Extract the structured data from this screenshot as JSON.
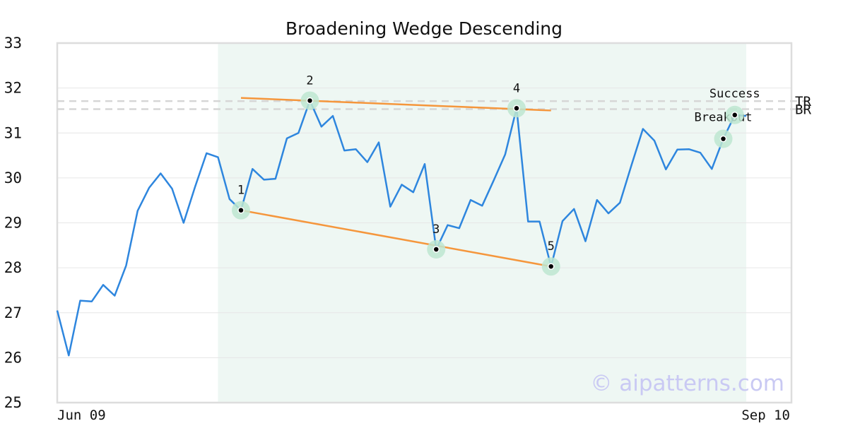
{
  "chart_data": {
    "type": "line",
    "title": "Broadening Wedge Descending",
    "xlabel": "",
    "ylabel": "",
    "ylim": [
      25,
      33
    ],
    "yticks": [
      25,
      26,
      27,
      28,
      29,
      30,
      31,
      32,
      33
    ],
    "x_tick_labels": [
      "Jun 09",
      "Sep 10"
    ],
    "grid": true,
    "colors": {
      "price": "#2e86de",
      "trendline": "#f5963c",
      "pattern_region": "#eef7f3",
      "marker_halo": "#bde6d0",
      "guide_line": "#d6d6d6",
      "watermark": "#c9c9f3"
    },
    "series": [
      {
        "values": [
          27.05,
          26.05,
          27.27,
          27.25,
          27.62,
          27.38,
          28.05,
          29.27,
          29.78,
          30.1,
          29.76,
          29.0,
          29.8,
          30.55,
          30.46,
          29.53,
          29.28,
          30.2,
          29.96,
          29.98,
          30.88,
          31.0,
          31.72,
          31.14,
          31.38,
          30.61,
          30.64,
          30.35,
          30.79,
          29.36,
          29.85,
          29.68,
          30.31,
          28.41,
          28.95,
          28.88,
          29.51,
          29.38,
          29.94,
          30.52,
          31.55,
          29.03,
          29.03,
          28.03,
          29.04,
          29.31,
          28.59,
          29.51,
          29.21,
          29.45,
          30.28,
          31.09,
          30.83,
          30.19,
          30.63,
          30.64,
          30.56,
          30.2,
          30.87,
          31.4,
          31.38
        ]
      }
    ],
    "pattern_region": {
      "start_index": 14,
      "end_index": 60
    },
    "pattern_points": [
      {
        "label": "1",
        "index": 16,
        "value": 29.28
      },
      {
        "label": "2",
        "index": 22,
        "value": 31.72
      },
      {
        "label": "3",
        "index": 33,
        "value": 28.41
      },
      {
        "label": "4",
        "index": 40,
        "value": 31.55
      },
      {
        "label": "5",
        "index": 43,
        "value": 28.03
      }
    ],
    "trendlines": [
      {
        "name": "upper",
        "from": {
          "index": 16,
          "value": 31.78
        },
        "to": {
          "index": 43,
          "value": 31.5
        }
      },
      {
        "name": "lower",
        "from": {
          "index": 16,
          "value": 29.28
        },
        "to": {
          "index": 43,
          "value": 28.03
        }
      }
    ],
    "annotations": [
      {
        "label": "Breakout",
        "index": 58,
        "value": 30.87
      },
      {
        "label": "Success",
        "index": 59,
        "value": 31.4
      }
    ],
    "horizontal_lines": [
      {
        "label": "TR",
        "value": 31.71
      },
      {
        "label": "BR",
        "value": 31.53
      }
    ],
    "watermark": "© aipatterns.com"
  }
}
